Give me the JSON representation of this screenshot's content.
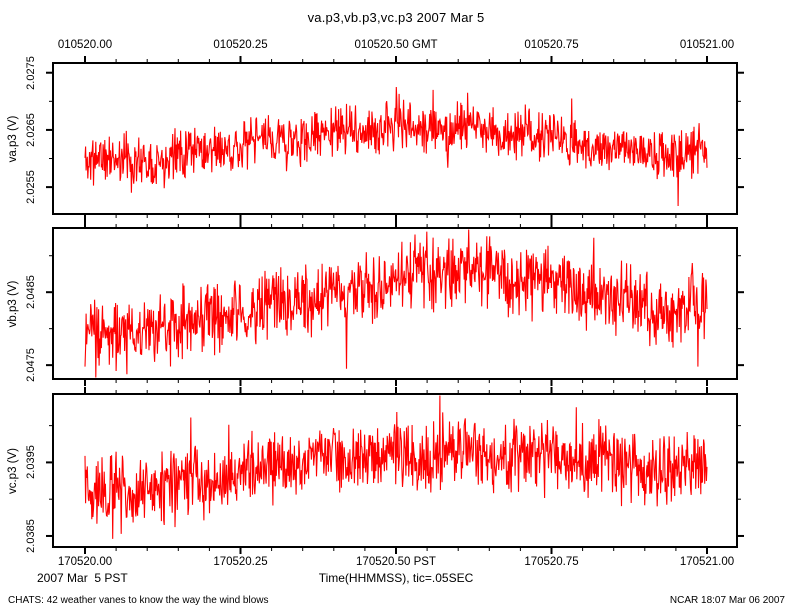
{
  "title": "va.p3,vb.p3,vc.p3 2007 Mar 5",
  "axes": {
    "top": {
      "side": "top",
      "timezone": "GMT",
      "labels": [
        {
          "t": 0.0,
          "text": "010520.00"
        },
        {
          "t": 0.25,
          "text": "010520.25"
        },
        {
          "t": 0.5,
          "text": "010520.50 GMT"
        },
        {
          "t": 0.75,
          "text": "010520.75"
        },
        {
          "t": 1.0,
          "text": "010521.00"
        }
      ]
    },
    "bottom": {
      "side": "bottom",
      "timezone": "PST",
      "labels": [
        {
          "t": 0.0,
          "text": "170520.00"
        },
        {
          "t": 0.25,
          "text": "170520.25"
        },
        {
          "t": 0.5,
          "text": "170520.50 PST"
        },
        {
          "t": 0.75,
          "text": "170520.75"
        },
        {
          "t": 1.0,
          "text": "170521.00"
        }
      ]
    },
    "bottom_left_caption": "2007 Mar  5 PST",
    "bottom_center_caption": "Time(HHMMSS), tic=.05SEC"
  },
  "footer": {
    "left": "CHATS: 42 weather vanes to know the way the wind blows",
    "right": "NCAR 18:07 Mar 06 2007"
  },
  "chart_data": [
    {
      "type": "line",
      "name": "va.p3",
      "ylabel": "va.p3 (V)",
      "color": "#ff0000",
      "x_start": "010520.00",
      "x_end": "010521.00",
      "x_major_step_sec": 0.25,
      "x_minor_tic_sec": 0.05,
      "ylim": [
        2.02503,
        2.02767
      ],
      "yticks_major": [
        2.0275,
        2.0265,
        2.0255
      ],
      "yticks_major_labels": [
        "2.0275",
        "2.0265",
        "2.0255"
      ],
      "yticks_minor": [
        2.027,
        2.026
      ],
      "mean_profile": [
        [
          0,
          2.02605
        ],
        [
          0.05,
          2.02595
        ],
        [
          0.12,
          2.02603
        ],
        [
          0.22,
          2.0262
        ],
        [
          0.32,
          2.02633
        ],
        [
          0.42,
          2.02648
        ],
        [
          0.5,
          2.02655
        ],
        [
          0.58,
          2.02652
        ],
        [
          0.68,
          2.02645
        ],
        [
          0.78,
          2.0263
        ],
        [
          0.88,
          2.02615
        ],
        [
          0.95,
          2.02602
        ],
        [
          1,
          2.02612
        ]
      ],
      "noise_amp": 0.00036,
      "spike_prob": 0.03,
      "spike_amp": 0.0005,
      "spikes": [
        {
          "t": 0.075,
          "value": 2.0254
        },
        {
          "t": 0.5,
          "value": 2.02725
        },
        {
          "t": 0.56,
          "value": 2.0272
        },
        {
          "t": 0.615,
          "value": 2.02715
        },
        {
          "t": 0.954,
          "value": 2.02517
        }
      ],
      "n_samples": 1100,
      "seed": 11
    },
    {
      "type": "line",
      "name": "vb.p3",
      "ylabel": "vb.p3 (V)",
      "color": "#ff0000",
      "x_start": "010520.00",
      "x_end": "010521.00",
      "x_major_step_sec": 0.25,
      "x_minor_tic_sec": 0.05,
      "ylim": [
        2.04731,
        2.04938
      ],
      "yticks_major": [
        2.0485,
        2.0475
      ],
      "yticks_major_labels": [
        "2.0485",
        "2.0475"
      ],
      "yticks_minor": [
        2.049,
        2.048
      ],
      "mean_profile": [
        [
          0,
          2.048
        ],
        [
          0.08,
          2.04798
        ],
        [
          0.18,
          2.0481
        ],
        [
          0.3,
          2.0483
        ],
        [
          0.42,
          2.04855
        ],
        [
          0.52,
          2.04875
        ],
        [
          0.6,
          2.0488
        ],
        [
          0.7,
          2.0487
        ],
        [
          0.8,
          2.0485
        ],
        [
          0.9,
          2.0483
        ],
        [
          1,
          2.0482
        ]
      ],
      "noise_amp": 0.0004,
      "spike_prob": 0.03,
      "spike_amp": 0.0005,
      "spikes": [
        {
          "t": 0.05,
          "value": 2.04742
        },
        {
          "t": 0.42,
          "value": 2.04745
        },
        {
          "t": 0.55,
          "value": 2.04933
        },
        {
          "t": 0.985,
          "value": 2.04748
        }
      ],
      "n_samples": 1100,
      "seed": 23
    },
    {
      "type": "line",
      "name": "vc.p3",
      "ylabel": "vc.p3 (V)",
      "color": "#ff0000",
      "x_start": "010520.00",
      "x_end": "010521.00",
      "x_major_step_sec": 0.25,
      "x_minor_tic_sec": 0.05,
      "ylim": [
        2.03835,
        2.04043
      ],
      "yticks_major": [
        2.0395,
        2.0385
      ],
      "yticks_major_labels": [
        "2.0395",
        "2.0385"
      ],
      "yticks_minor": [
        2.04,
        2.039
      ],
      "mean_profile": [
        [
          0,
          2.0391
        ],
        [
          0.08,
          2.03908
        ],
        [
          0.18,
          2.03925
        ],
        [
          0.3,
          2.03945
        ],
        [
          0.45,
          2.0396
        ],
        [
          0.6,
          2.03962
        ],
        [
          0.72,
          2.0396
        ],
        [
          0.85,
          2.0395
        ],
        [
          0.95,
          2.03935
        ],
        [
          1,
          2.03945
        ]
      ],
      "noise_amp": 0.0004,
      "spike_prob": 0.03,
      "spike_amp": 0.0005,
      "spikes": [
        {
          "t": 0.045,
          "value": 2.03846
        },
        {
          "t": 0.145,
          "value": 2.03862
        },
        {
          "t": 0.52,
          "value": 2.04
        },
        {
          "t": 0.79,
          "value": 2.04025
        }
      ],
      "n_samples": 1100,
      "seed": 37
    }
  ]
}
